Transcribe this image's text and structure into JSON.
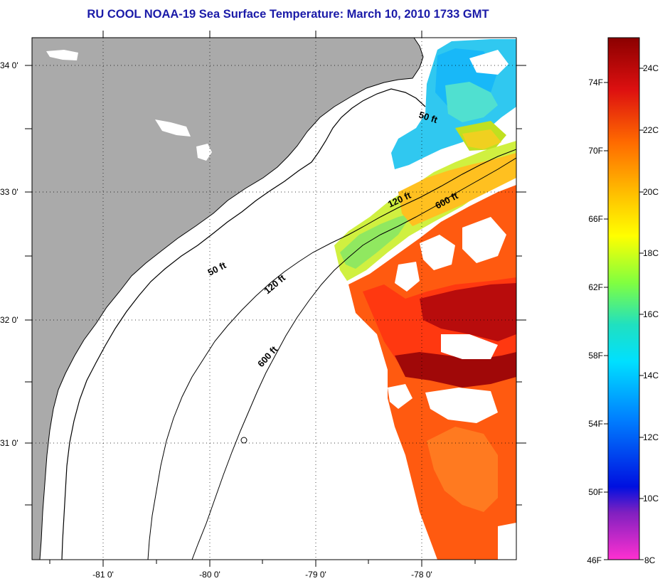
{
  "title": "RU COOL  NOAA-19  Sea Surface Temperature:  March 10, 2010 1733 GMT",
  "map": {
    "lon_ticks": [
      "-81 0'",
      "-80 0'",
      "-79 0'",
      "-78 0'"
    ],
    "lat_ticks": [
      "34 0'",
      "33 0'",
      "32 0'",
      "31 0'"
    ],
    "contours": [
      {
        "label": "50 ft"
      },
      {
        "label": "50 ft"
      },
      {
        "label": "120 ft"
      },
      {
        "label": "120 ft"
      },
      {
        "label": "600 ft"
      },
      {
        "label": "600 ft"
      }
    ],
    "colors": {
      "land": "#aaaaaa",
      "ocean_no_data": "#ffffff",
      "coastline": "#000000"
    }
  },
  "colorbar": {
    "fahrenheit_labels": [
      "74F",
      "70F",
      "66F",
      "62F",
      "58F",
      "54F",
      "50F",
      "46F"
    ],
    "celsius_labels": [
      "24C",
      "22C",
      "20C",
      "18C",
      "16C",
      "14C",
      "12C",
      "10C",
      "8C"
    ],
    "gradient_colors": [
      "#8b0000",
      "#dd1010",
      "#ff6a00",
      "#ffc000",
      "#ffff00",
      "#80ff40",
      "#20e0c0",
      "#00e0ff",
      "#0080ff",
      "#0010e0",
      "#8020c0",
      "#ff30d0"
    ]
  }
}
